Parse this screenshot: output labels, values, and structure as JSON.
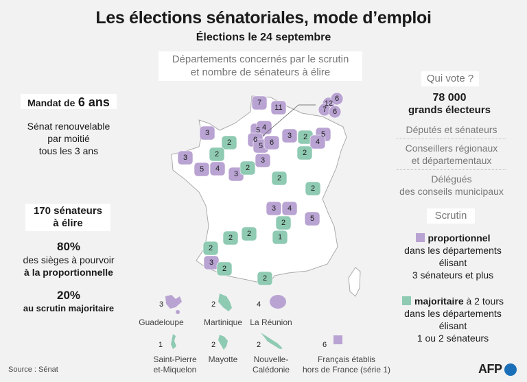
{
  "title": "Les élections sénatoriales, mode d’emploi",
  "subtitle": "Élections le 24 septembre",
  "map_caption": [
    "Départements concernés par le scrutin",
    "et nombre de sénateurs à élire"
  ],
  "colors": {
    "proportionnel": "#b9a3d2",
    "majoritaire": "#8fcab3",
    "background": "#f2f2f2"
  },
  "left": {
    "mandat_label": "Mandat de",
    "mandat_value": "6 ans",
    "renouvellement": [
      "Sénat renouvelable",
      "par moitié",
      "tous les 3 ans"
    ],
    "senateurs": [
      "170 sénateurs",
      "à élire"
    ],
    "pct1": "80%",
    "pct1_text": [
      "des sièges à pourvoir",
      "à la proportionnelle"
    ],
    "pct2": "20%",
    "pct2_text": "au scrutin majoritaire"
  },
  "right": {
    "qui_vote": "Qui vote ?",
    "electeurs_count": "78 000",
    "electeurs_label": "grands électeurs",
    "groups": [
      "Députés et sénateurs",
      [
        "Conseillers régionaux",
        "et départementaux"
      ],
      [
        "Délégués",
        "des conseils municipaux"
      ]
    ],
    "scrutin": "Scrutin",
    "prop_label": "proportionnel",
    "prop_text": [
      "dans les départements",
      "élisant",
      "3 sénateurs et plus"
    ],
    "maj_label": "majoritaire",
    "maj_suffix": " à 2 tours",
    "maj_text": [
      "dans les départements",
      "élisant",
      "1 ou 2 sénateurs"
    ]
  },
  "map_departments": [
    {
      "n": "7",
      "mode": "prop"
    },
    {
      "n": "11",
      "mode": "prop"
    },
    {
      "n": "12",
      "mode": "prop"
    },
    {
      "n": "6",
      "mode": "prop"
    },
    {
      "n": "7",
      "mode": "prop"
    },
    {
      "n": "6",
      "mode": "prop"
    },
    {
      "n": "3",
      "mode": "prop"
    },
    {
      "n": "2",
      "mode": "maj"
    },
    {
      "n": "3",
      "mode": "prop"
    },
    {
      "n": "2",
      "mode": "maj"
    },
    {
      "n": "5",
      "mode": "prop"
    },
    {
      "n": "4",
      "mode": "prop"
    },
    {
      "n": "3",
      "mode": "prop"
    },
    {
      "n": "2",
      "mode": "maj"
    },
    {
      "n": "5",
      "mode": "prop"
    },
    {
      "n": "4",
      "mode": "prop"
    },
    {
      "n": "6",
      "mode": "prop"
    },
    {
      "n": "5",
      "mode": "prop"
    },
    {
      "n": "6",
      "mode": "prop"
    },
    {
      "n": "3",
      "mode": "prop"
    },
    {
      "n": "3",
      "mode": "prop"
    },
    {
      "n": "2",
      "mode": "maj"
    },
    {
      "n": "5",
      "mode": "prop"
    },
    {
      "n": "4",
      "mode": "prop"
    },
    {
      "n": "2",
      "mode": "maj"
    },
    {
      "n": "2",
      "mode": "maj"
    },
    {
      "n": "2",
      "mode": "maj"
    },
    {
      "n": "3",
      "mode": "prop"
    },
    {
      "n": "4",
      "mode": "prop"
    },
    {
      "n": "5",
      "mode": "prop"
    },
    {
      "n": "2",
      "mode": "maj"
    },
    {
      "n": "1",
      "mode": "maj"
    },
    {
      "n": "2",
      "mode": "maj"
    },
    {
      "n": "2",
      "mode": "maj"
    },
    {
      "n": "2",
      "mode": "maj"
    },
    {
      "n": "3",
      "mode": "prop"
    },
    {
      "n": "2",
      "mode": "maj"
    },
    {
      "n": "2",
      "mode": "maj"
    }
  ],
  "overseas": [
    {
      "n": "3",
      "name": "Guadeloupe",
      "mode": "prop"
    },
    {
      "n": "2",
      "name": "Martinique",
      "mode": "maj"
    },
    {
      "n": "4",
      "name": "La Réunion",
      "mode": "prop"
    },
    {
      "n": "1",
      "name": [
        "Saint-Pierre",
        "et-Miquelon"
      ],
      "mode": "maj"
    },
    {
      "n": "2",
      "name": "Mayotte",
      "mode": "maj"
    },
    {
      "n": "2",
      "name": [
        "Nouvelle-",
        "Calédonie"
      ],
      "mode": "maj"
    },
    {
      "n": "6",
      "name": [
        "Français établis",
        "hors de France (série 1)"
      ],
      "mode": "prop"
    }
  ],
  "source": "Source : Sénat",
  "logo": "AFP"
}
